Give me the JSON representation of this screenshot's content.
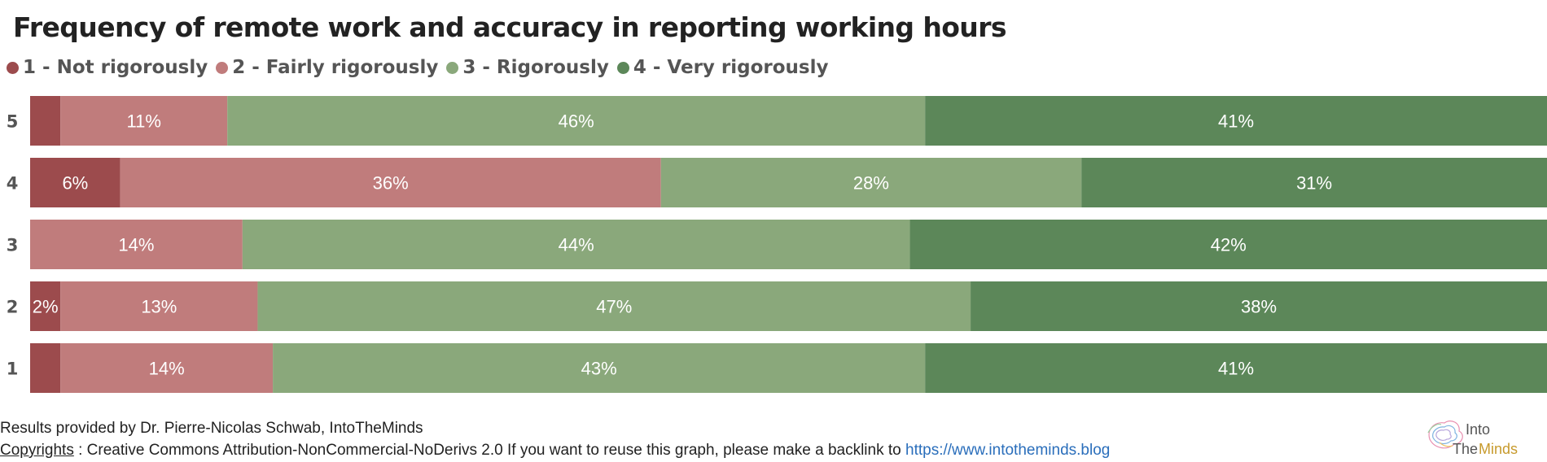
{
  "title": "Frequency of remote work and accuracy in reporting working hours",
  "legend": [
    {
      "label": "1 - Not rigorously",
      "color": "#9c4b4d"
    },
    {
      "label": "2 - Fairly rigorously",
      "color": "#c07c7c"
    },
    {
      "label": "3 - Rigorously",
      "color": "#8aa87b"
    },
    {
      "label": "4 - Very rigorously",
      "color": "#5c8759"
    }
  ],
  "chart_data": {
    "type": "bar",
    "orientation": "horizontal",
    "stacked": true,
    "normalized": true,
    "categories": [
      "5",
      "4",
      "3",
      "2",
      "1"
    ],
    "series": [
      {
        "name": "1 - Not rigorously",
        "color": "#9c4b4d",
        "values": [
          2,
          6,
          0,
          2,
          2
        ],
        "labels": [
          "",
          "6%",
          "",
          "2%",
          ""
        ]
      },
      {
        "name": "2 - Fairly rigorously",
        "color": "#c07c7c",
        "values": [
          11,
          36,
          14,
          13,
          14
        ],
        "labels": [
          "11%",
          "36%",
          "14%",
          "13%",
          "14%"
        ]
      },
      {
        "name": "3 - Rigorously",
        "color": "#8aa87b",
        "values": [
          46,
          28,
          44,
          47,
          43
        ],
        "labels": [
          "46%",
          "28%",
          "44%",
          "47%",
          "43%"
        ]
      },
      {
        "name": "4 - Very rigorously",
        "color": "#5c8759",
        "values": [
          41,
          31,
          42,
          38,
          41
        ],
        "labels": [
          "41%",
          "31%",
          "42%",
          "38%",
          "41%"
        ]
      }
    ],
    "legend_position": "top-left",
    "grid": false
  },
  "footer": {
    "line1": "Results provided by Dr. Pierre-Nicolas Schwab, IntoTheMinds",
    "copyright_word": "Copyrights",
    "line2": " : Creative Commons Attribution-NonCommercial-NoDerivs 2.0 If you want to reuse this graph, please make a backlink to ",
    "link": "https://www.intotheminds.blog"
  },
  "logo": {
    "line1": "Into",
    "line2a": "The",
    "line2b": "Minds"
  }
}
